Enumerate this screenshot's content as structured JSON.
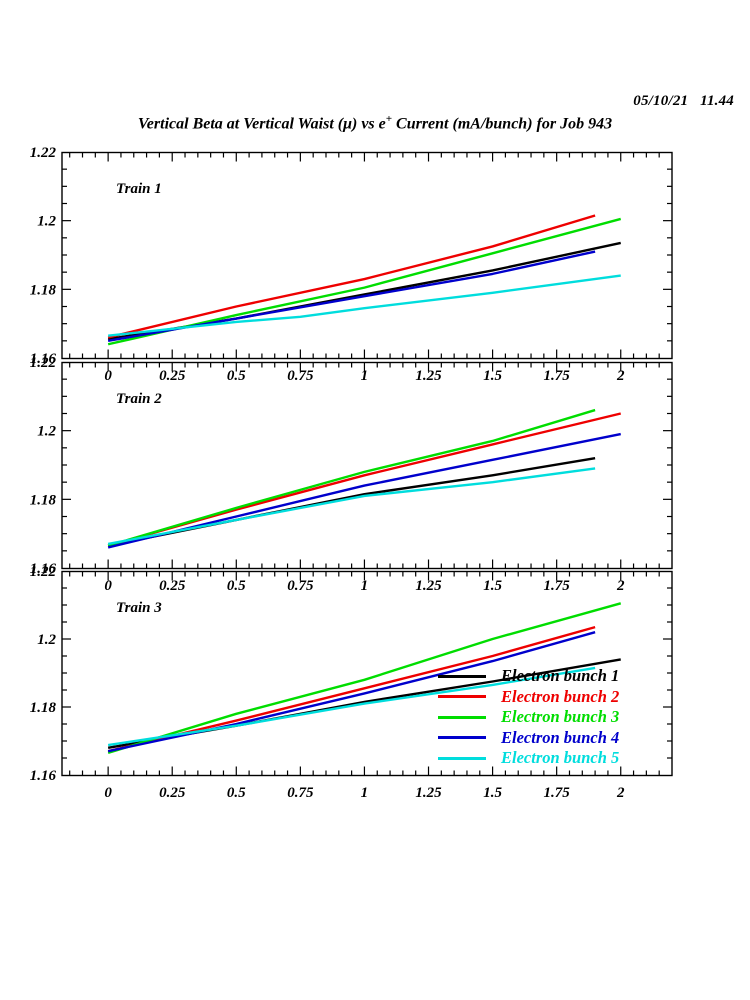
{
  "header": {
    "timestamp": "05/10/21   11.44",
    "title_pre": "Vertical Beta at Vertical Waist (μ) vs e",
    "title_sup": "+",
    "title_post": " Current (mA/bunch) for Job 943"
  },
  "legend": {
    "items": [
      {
        "label": "Electron bunch 1",
        "color": "#000000"
      },
      {
        "label": "Electron bunch 2",
        "color": "#ee0000"
      },
      {
        "label": "Electron bunch 3",
        "color": "#00dd00"
      },
      {
        "label": "Electron bunch 4",
        "color": "#0000cc"
      },
      {
        "label": "Electron bunch 5",
        "color": "#00dddd"
      }
    ]
  },
  "chart_data": [
    {
      "type": "line",
      "title": "Train 1",
      "xlabel": "e+ Current (mA/bunch)",
      "ylabel": "Vertical Beta at Vertical Waist",
      "xlim": [
        -0.18,
        2.2
      ],
      "ylim": [
        1.16,
        1.22
      ],
      "x_major_ticks": [
        0,
        0.25,
        0.5,
        0.75,
        1,
        1.25,
        1.5,
        1.75,
        2
      ],
      "x_tick_labels": [
        "0",
        "0.25",
        "0.5",
        "0.75",
        "1",
        "1.25",
        "1.5",
        "1.75",
        "2"
      ],
      "x_minor_step": 0.05,
      "y_major_ticks": [
        1.16,
        1.18,
        1.2,
        1.22
      ],
      "y_tick_labels": [
        "1.16",
        "1.18",
        "1.2",
        "1.22"
      ],
      "y_minor_step": 0.005,
      "grid": false,
      "series": [
        {
          "name": "Electron bunch 1",
          "color": "#000000",
          "x": [
            0,
            0.5,
            1.0,
            1.5,
            2.0
          ],
          "y": [
            1.1655,
            1.1715,
            1.1785,
            1.1855,
            1.1935
          ]
        },
        {
          "name": "Electron bunch 2",
          "color": "#ee0000",
          "x": [
            0,
            0.5,
            1.0,
            1.5,
            1.9
          ],
          "y": [
            1.166,
            1.175,
            1.183,
            1.1925,
            1.2015
          ]
        },
        {
          "name": "Electron bunch 3",
          "color": "#00dd00",
          "x": [
            0,
            0.5,
            1.0,
            1.5,
            2.0
          ],
          "y": [
            1.164,
            1.1725,
            1.1805,
            1.1905,
            1.2005
          ]
        },
        {
          "name": "Electron bunch 4",
          "color": "#0000cc",
          "x": [
            0,
            0.5,
            1.0,
            1.5,
            1.9
          ],
          "y": [
            1.165,
            1.1715,
            1.178,
            1.1845,
            1.191
          ]
        },
        {
          "name": "Electron bunch 5",
          "color": "#00dddd",
          "x": [
            0,
            0.5,
            0.75,
            1.0,
            1.5,
            2.0
          ],
          "y": [
            1.1665,
            1.1705,
            1.172,
            1.1745,
            1.179,
            1.184
          ]
        }
      ]
    },
    {
      "type": "line",
      "title": "Train 2",
      "xlabel": "e+ Current (mA/bunch)",
      "ylabel": "Vertical Beta at Vertical Waist",
      "xlim": [
        -0.18,
        2.2
      ],
      "ylim": [
        1.16,
        1.22
      ],
      "x_major_ticks": [
        0,
        0.25,
        0.5,
        0.75,
        1,
        1.25,
        1.5,
        1.75,
        2
      ],
      "x_tick_labels": [
        "0",
        "0.25",
        "0.5",
        "0.75",
        "1",
        "1.25",
        "1.5",
        "1.75",
        "2"
      ],
      "x_minor_step": 0.05,
      "y_major_ticks": [
        1.16,
        1.18,
        1.2,
        1.22
      ],
      "y_tick_labels": [
        "1.16",
        "1.18",
        "1.2",
        "1.22"
      ],
      "y_minor_step": 0.005,
      "grid": false,
      "series": [
        {
          "name": "Electron bunch 1",
          "color": "#000000",
          "x": [
            0,
            0.5,
            1.0,
            1.5,
            1.9
          ],
          "y": [
            1.1665,
            1.174,
            1.1815,
            1.187,
            1.192
          ]
        },
        {
          "name": "Electron bunch 2",
          "color": "#ee0000",
          "x": [
            0,
            0.5,
            1.0,
            1.5,
            2.0
          ],
          "y": [
            1.1665,
            1.177,
            1.187,
            1.196,
            1.205
          ]
        },
        {
          "name": "Electron bunch 3",
          "color": "#00dd00",
          "x": [
            0,
            0.5,
            1.0,
            1.5,
            1.9
          ],
          "y": [
            1.1665,
            1.1775,
            1.188,
            1.197,
            1.206
          ]
        },
        {
          "name": "Electron bunch 4",
          "color": "#0000cc",
          "x": [
            0,
            0.5,
            1.0,
            1.5,
            2.0
          ],
          "y": [
            1.166,
            1.175,
            1.184,
            1.1915,
            1.199
          ]
        },
        {
          "name": "Electron bunch 5",
          "color": "#00dddd",
          "x": [
            0,
            0.5,
            1.0,
            1.5,
            1.9
          ],
          "y": [
            1.167,
            1.174,
            1.181,
            1.185,
            1.189
          ]
        }
      ]
    },
    {
      "type": "line",
      "title": "Train 3",
      "xlabel": "e+ Current (mA/bunch)",
      "ylabel": "Vertical Beta at Vertical Waist",
      "xlim": [
        -0.18,
        2.2
      ],
      "ylim": [
        1.16,
        1.22
      ],
      "x_major_ticks": [
        0,
        0.25,
        0.5,
        0.75,
        1,
        1.25,
        1.5,
        1.75,
        2
      ],
      "x_tick_labels": [
        "0",
        "0.25",
        "0.5",
        "0.75",
        "1",
        "1.25",
        "1.5",
        "1.75",
        "2"
      ],
      "x_minor_step": 0.05,
      "y_major_ticks": [
        1.16,
        1.18,
        1.2,
        1.22
      ],
      "y_tick_labels": [
        "1.16",
        "1.18",
        "1.2",
        "1.22"
      ],
      "y_minor_step": 0.005,
      "grid": false,
      "series": [
        {
          "name": "Electron bunch 1",
          "color": "#000000",
          "x": [
            0,
            0.5,
            1.0,
            1.5,
            2.0
          ],
          "y": [
            1.168,
            1.1745,
            1.1815,
            1.1875,
            1.194
          ]
        },
        {
          "name": "Electron bunch 2",
          "color": "#ee0000",
          "x": [
            0,
            0.5,
            1.0,
            1.5,
            1.9
          ],
          "y": [
            1.167,
            1.176,
            1.1855,
            1.195,
            1.2035
          ]
        },
        {
          "name": "Electron bunch 3",
          "color": "#00dd00",
          "x": [
            0,
            0.5,
            1.0,
            1.5,
            2.0
          ],
          "y": [
            1.1665,
            1.178,
            1.188,
            1.2,
            1.2105
          ]
        },
        {
          "name": "Electron bunch 4",
          "color": "#0000cc",
          "x": [
            0,
            0.5,
            1.0,
            1.5,
            1.9
          ],
          "y": [
            1.167,
            1.175,
            1.184,
            1.1935,
            1.202
          ]
        },
        {
          "name": "Electron bunch 5",
          "color": "#00dddd",
          "x": [
            0,
            0.5,
            1.0,
            1.5,
            1.9
          ],
          "y": [
            1.1688,
            1.1745,
            1.181,
            1.1865,
            1.1915
          ]
        }
      ]
    }
  ]
}
